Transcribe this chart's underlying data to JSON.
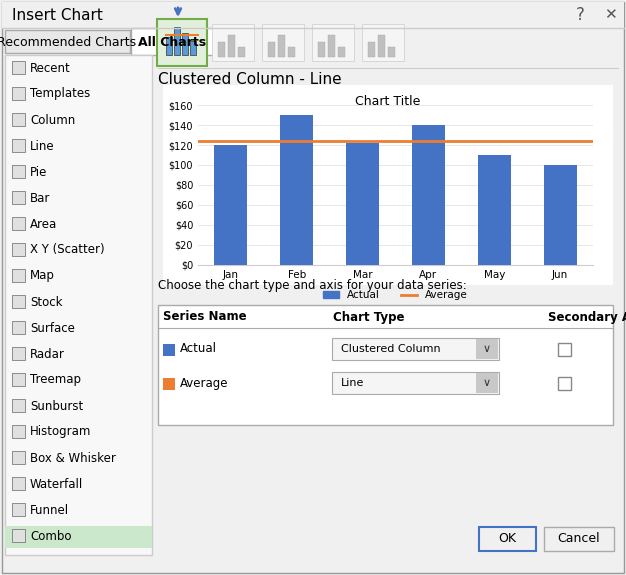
{
  "title": "Insert Chart",
  "tab_recommended": "Recommended Charts",
  "tab_all": "All Charts",
  "left_menu": [
    "Recent",
    "Templates",
    "Column",
    "Line",
    "Pie",
    "Bar",
    "Area",
    "X Y (Scatter)",
    "Map",
    "Stock",
    "Surface",
    "Radar",
    "Treemap",
    "Sunburst",
    "Histogram",
    "Box & Whisker",
    "Waterfall",
    "Funnel",
    "Combo"
  ],
  "selected_menu": "Combo",
  "chart_subtitle": "Clustered Column - Line",
  "chart_title": "Chart Title",
  "months": [
    "Jan",
    "Feb",
    "Mar",
    "Apr",
    "May",
    "Jun"
  ],
  "actual_values": [
    120,
    150,
    122,
    140,
    110,
    100
  ],
  "average_value": 123.67,
  "bar_color": "#4472c4",
  "line_color": "#ed7d31",
  "bg_color": "#ffffff",
  "dialog_bg": "#f0f0f0",
  "selected_bg": "#c6efce",
  "tab_active_bg": "#ffffff",
  "tab_inactive_bg": "#e8e8e8",
  "legend_actual": "Actual",
  "legend_average": "Average",
  "series_label": "Choose the chart type and axis for your data series:",
  "col1_header": "Series Name",
  "col2_header": "Chart Type",
  "col3_header": "Secondary Axis",
  "row1_name": "Actual",
  "row1_type": "Clustered Column",
  "row2_name": "Average",
  "row2_type": "Line",
  "ok_btn": "OK",
  "cancel_btn": "Cancel",
  "ylim": [
    0,
    160
  ],
  "yticks": [
    0,
    20,
    40,
    60,
    80,
    100,
    120,
    140,
    160
  ]
}
